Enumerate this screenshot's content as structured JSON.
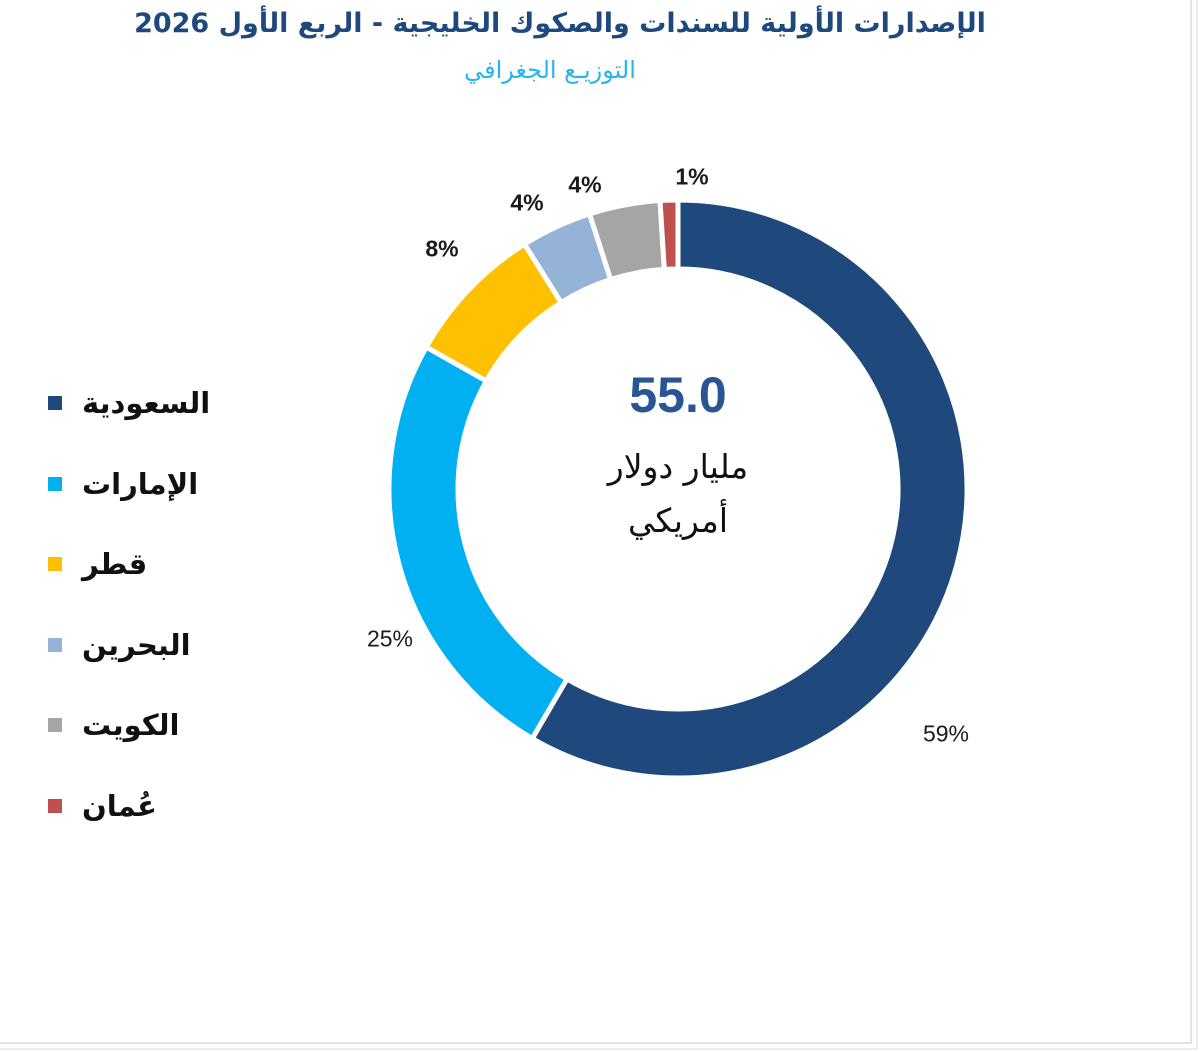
{
  "header": {
    "title": "الإصدارات الأولية للسندات والصكوك الخليجية - الربع الأول 2026",
    "subtitle": "التوزيـع الجغرافي"
  },
  "center": {
    "value": "55.0",
    "unit_line1": "مليار دولار",
    "unit_line2": "أمريكي"
  },
  "colors": {
    "title": "#1F497D",
    "subtitle": "#29B5EA",
    "center_value": "#2B5592"
  },
  "legend": {
    "items": [
      {
        "label": "السعودية",
        "color": "#1F497D"
      },
      {
        "label": "الإمارات",
        "color": "#00B0F0"
      },
      {
        "label": "قطر",
        "color": "#FFC000"
      },
      {
        "label": "البحرين",
        "color": "#95B3D7"
      },
      {
        "label": "الكويت",
        "color": "#A5A5A5"
      },
      {
        "label": "عُمان",
        "color": "#C0504D"
      }
    ]
  },
  "chart_data": {
    "type": "pie",
    "variant": "donut",
    "title": "الإصدارات الأولية للسندات والصكوك الخليجية - الربع الأول 2026",
    "subtitle": "التوزيـع الجغرافي",
    "categories": [
      "السعودية",
      "الإمارات",
      "قطر",
      "البحرين",
      "الكويت",
      "عُمان"
    ],
    "values": [
      59,
      25,
      8,
      4,
      4,
      1
    ],
    "labels": [
      "59%",
      "25%",
      "8%",
      "4%",
      "4%",
      "1%"
    ],
    "colors": [
      "#1F497D",
      "#00B0F0",
      "#FFC000",
      "#95B3D7",
      "#A5A5A5",
      "#C0504D"
    ],
    "unit": "%",
    "total": "55.0",
    "total_unit": "مليار دولار أمريكي",
    "start_angle": "12 o'clock",
    "direction": "clockwise",
    "legend_position": "left"
  }
}
